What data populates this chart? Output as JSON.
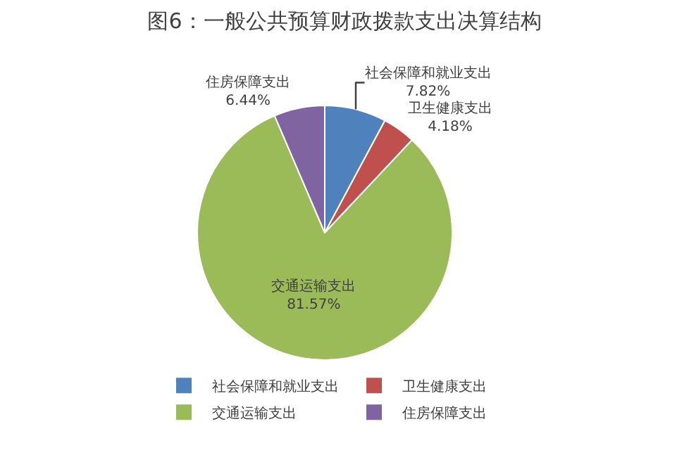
{
  "chart_data": {
    "type": "pie",
    "title": "图6：一般公共预算财政拨款支出决算结构",
    "categories": [
      "社会保障和就业支出",
      "卫生健康支出",
      "交通运输支出",
      "住房保障支出"
    ],
    "values": [
      7.82,
      4.18,
      81.57,
      6.44
    ],
    "colors": [
      "#4f81bd",
      "#c0504d",
      "#9bbb59",
      "#8064a2"
    ],
    "value_labels": [
      "7.82%",
      "4.18%",
      "81.57%",
      "6.44%"
    ],
    "legend": "bottom"
  }
}
